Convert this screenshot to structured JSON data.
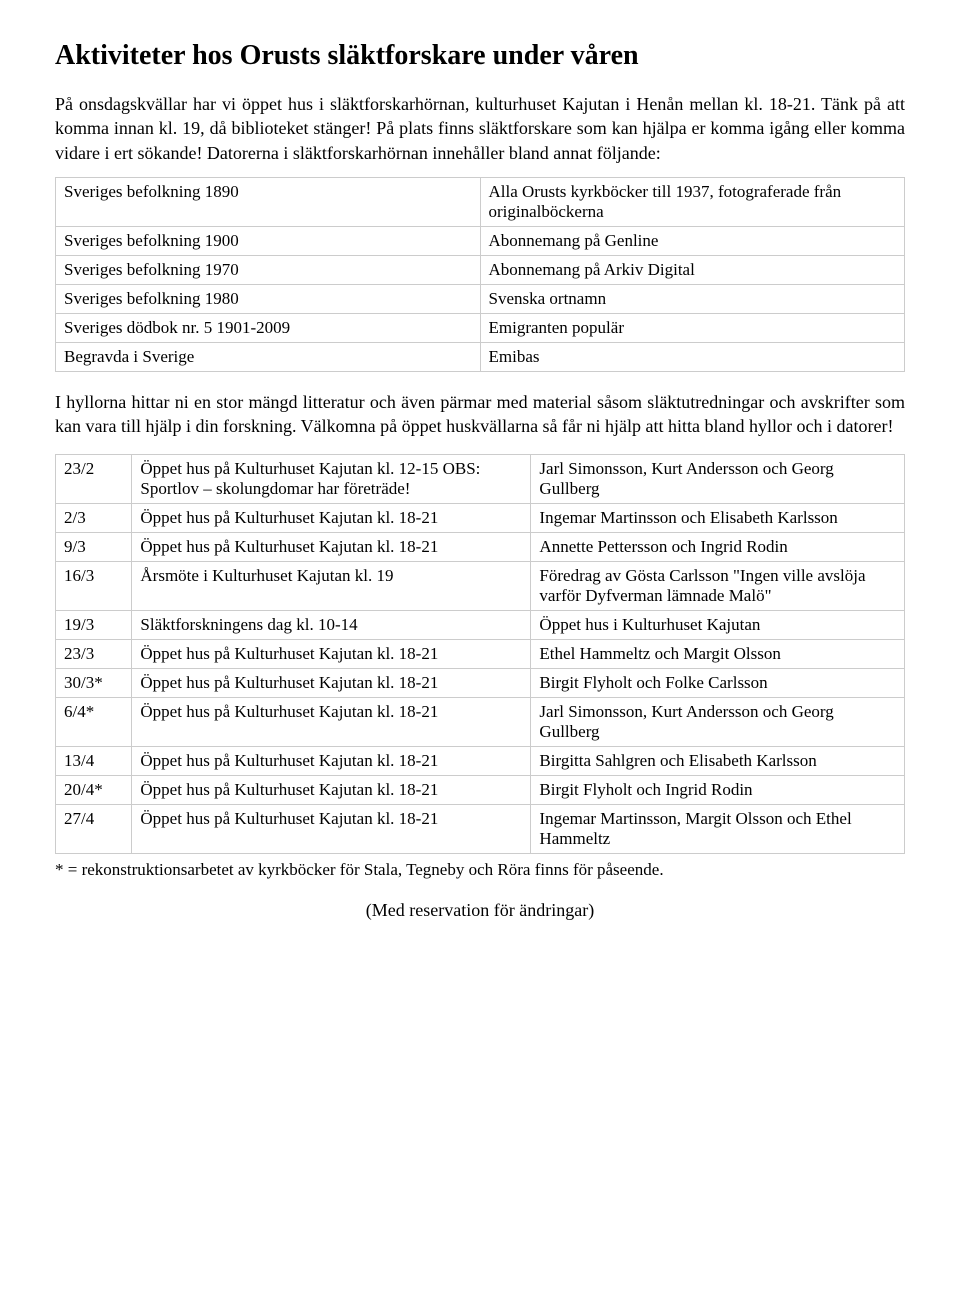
{
  "title": "Aktiviteter hos Orusts släktforskare under våren",
  "intro": "På onsdagskvällar har vi öppet hus i släktforskarhörnan, kulturhuset Kajutan i Henån mellan kl. 18-21. Tänk på att komma innan kl. 19, då biblioteket stänger! På plats finns släktforskare som kan hjälpa er komma igång eller komma vidare i ert sökande! Datorerna i släktforskarhörnan innehåller bland annat följande:",
  "resources": {
    "rows": [
      {
        "left": "Sveriges befolkning 1890",
        "right": "Alla Orusts kyrkböcker till 1937, fotograferade från originalböckerna"
      },
      {
        "left": "Sveriges befolkning 1900",
        "right": "Abonnemang på Genline"
      },
      {
        "left": "Sveriges befolkning 1970",
        "right": "Abonnemang på Arkiv Digital"
      },
      {
        "left": "Sveriges befolkning 1980",
        "right": "Svenska ortnamn"
      },
      {
        "left": "Sveriges dödbok nr. 5 1901-2009",
        "right": "Emigranten populär"
      },
      {
        "left": "Begravda i Sverige",
        "right": "Emibas"
      }
    ]
  },
  "mid_para": "I hyllorna hittar ni en stor mängd litteratur och även pärmar med material såsom släktutredningar och avskrifter som kan vara till hjälp i din forskning. Välkomna på öppet huskvällarna så får ni hjälp att hitta bland hyllor och i datorer!",
  "schedule": {
    "groups": [
      [
        {
          "date": "23/2",
          "event": "Öppet hus på Kulturhuset Kajutan kl. 12-15 OBS: Sportlov – skolungdomar har företräde!",
          "people": "Jarl Simonsson, Kurt Andersson och Georg Gullberg"
        },
        {
          "date": "2/3",
          "event": "Öppet hus på Kulturhuset Kajutan kl. 18-21",
          "people": "Ingemar Martinsson och Elisabeth Karlsson"
        }
      ],
      [
        {
          "date": "9/3",
          "event": "Öppet hus på Kulturhuset Kajutan kl. 18-21",
          "people": "Annette Pettersson och Ingrid Rodin"
        }
      ],
      [
        {
          "date": "16/3",
          "event": "Årsmöte i Kulturhuset Kajutan kl. 19",
          "people": "Föredrag av Gösta Carlsson \"Ingen ville avslöja varför Dyfverman lämnade Malö\""
        },
        {
          "date": "19/3",
          "event": "Släktforskningens dag kl. 10-14",
          "people": "Öppet hus i Kulturhuset Kajutan"
        }
      ],
      [
        {
          "date": "23/3",
          "event": "Öppet hus på Kulturhuset Kajutan kl. 18-21",
          "people": " Ethel Hammeltz och Margit Olsson"
        }
      ],
      [
        {
          "date": "30/3*",
          "event": "Öppet hus på Kulturhuset Kajutan kl. 18-21",
          "people": "Birgit Flyholt och Folke Carlsson"
        }
      ],
      [
        {
          "date": "6/4*",
          "event": "Öppet hus på Kulturhuset Kajutan kl. 18-21",
          "people": "Jarl Simonsson, Kurt Andersson och Georg Gullberg"
        },
        {
          "date": "13/4",
          "event": "Öppet hus på Kulturhuset Kajutan kl. 18-21",
          "people": "Birgitta Sahlgren och Elisabeth Karlsson"
        }
      ],
      [
        {
          "date": "20/4*",
          "event": "Öppet hus på Kulturhuset Kajutan kl. 18-21",
          "people": "Birgit Flyholt och Ingrid Rodin"
        }
      ],
      [
        {
          "date": "27/4",
          "event": "Öppet hus på Kulturhuset Kajutan kl. 18-21",
          "people": "Ingemar Martinsson, Margit Olsson och Ethel Hammeltz"
        }
      ]
    ]
  },
  "footnote": "* = rekonstruktionsarbetet av kyrkböcker för Stala, Tegneby och Röra finns för påseende.",
  "reservation": "(Med reservation för ändringar)"
}
